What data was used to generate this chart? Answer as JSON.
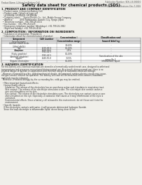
{
  "bg_color": "#f0efea",
  "header_top_left": "Product Name: Lithium Ion Battery Cell",
  "header_top_right": "Publication Number: SDS-LIB-000010\nEstablished / Revision: Dec.7.2016",
  "main_title": "Safety data sheet for chemical products (SDS)",
  "section1_title": "1. PRODUCT AND COMPANY IDENTIFICATION",
  "section1_lines": [
    "  • Product name: Lithium Ion Battery Cell",
    "  • Product code: Cylindrical-type cell",
    "    UR18650A, UR18650S, UR18650A",
    "  • Company name:     Sanyo Electric Co., Ltd., Mobile Energy Company",
    "  • Address:           2001 Kamikosaka, Sumoto City, Hyogo, Japan",
    "  • Telephone number:  +81-799-26-4111",
    "  • Fax number:  +81-799-26-4129",
    "  • Emergency telephone number (Weekdays): +81-799-26-3062",
    "    (Night and holiday): +81-799-26-4124"
  ],
  "section2_title": "2. COMPOSITION / INFORMATION ON INGREDIENTS",
  "section2_sub": "  • Substance or preparation: Preparation",
  "section2_sub2": "  • Information about the chemical nature of product:",
  "table_headers": [
    "Component",
    "CAS number",
    "Concentration /\nConcentration range",
    "Classification and\nhazard labeling"
  ],
  "table_col2_header": "Several name",
  "table_rows": [
    [
      "Lithium cobalt oxide\n(LiMnCoNiO4)",
      "-",
      "30-60%",
      "-"
    ],
    [
      "Iron",
      "7439-89-6",
      "10-20%",
      "-"
    ],
    [
      "Aluminum",
      "7429-90-5",
      "2-5%",
      "-"
    ],
    [
      "Graphite\n(Flaky graphite)\n(Artificial graphite)",
      "7782-42-5\n7782-42-5",
      "10-20%",
      "-"
    ],
    [
      "Copper",
      "7440-50-8",
      "5-15%",
      "Sensitization of the skin\ngroup No.2"
    ],
    [
      "Organic electrolyte",
      "-",
      "10-20%",
      "Inflammable liquid"
    ]
  ],
  "section3_title": "3. HAZARDS IDENTIFICATION",
  "section3_lines": [
    "For this battery cell, chemical materials are stored in a hermetically sealed metal case, designed to withstand",
    "temperatures and pressures encountered during normal use. As a result, during normal use, there is no",
    "physical danger of ignition or vaporization and therefore danger of hazardous materials leakage.",
    "  However, if exposed to a fire, added mechanical shocks, decomposed, written electric circuits may cause,",
    "the gas (smoke, solvent) be operated. The battery cell case will be breached of fire-carbons, hazardous",
    "materials may be released.",
    "  Moreover, if heated strongly by the surrounding fire, solid gas may be emitted.",
    "",
    "  • Most important hazard and effects:",
    "    Human health effects:",
    "      Inhalation: The release of the electrolyte has an anesthesia action and stimulates in respiratory tract.",
    "      Skin contact: The release of the electrolyte stimulates a skin. The electrolyte skin contact causes a",
    "      sore and stimulation on the skin.",
    "      Eye contact: The release of the electrolyte stimulates eyes. The electrolyte eye contact causes a sore",
    "      and stimulation on the eye. Especially, a substance that causes a strong inflammation of the eyes is",
    "      contained.",
    "      Environmental effects: Since a battery cell released in the environment, do not throw out it into the",
    "      environment.",
    "",
    "  • Specific hazards:",
    "    If the electrolyte contacts with water, it will generate detrimental hydrogen fluoride.",
    "    Since the lead electrolyte is inflammable liquid, do not bring close to fire."
  ]
}
